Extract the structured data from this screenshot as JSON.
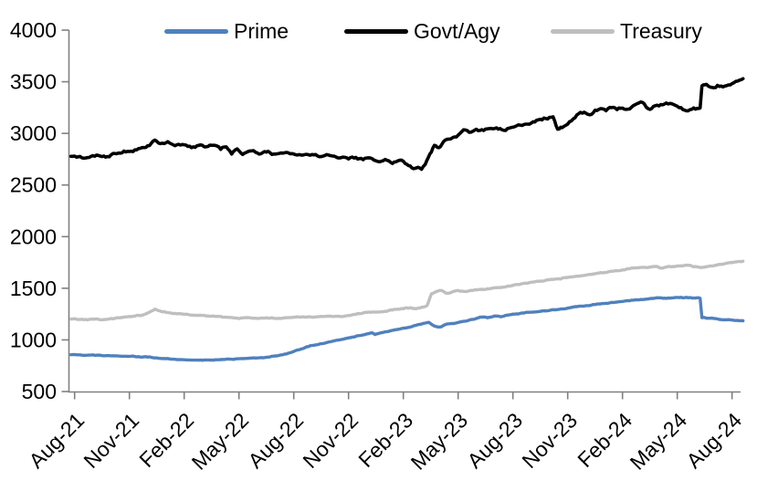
{
  "chart_data": {
    "type": "line",
    "title": "",
    "xlabel": "",
    "ylabel": "",
    "background": "#FFFFFF",
    "grid": false,
    "legend_position": "top",
    "axis_color": "#808080",
    "label_color": "#000000",
    "y_axis": {
      "ticks": [
        500,
        1000,
        1500,
        2000,
        2500,
        3000,
        3500,
        4000
      ],
      "range": [
        500,
        4000
      ]
    },
    "x_axis": {
      "tick_labels": [
        "Aug-21",
        "Nov-21",
        "Feb-22",
        "May-22",
        "Aug-22",
        "Nov-22",
        "Feb-23",
        "May-23",
        "Aug-23",
        "Nov-23",
        "Feb-24",
        "May-24",
        "Aug-24"
      ],
      "tick_months": [
        0,
        3,
        6,
        9,
        12,
        15,
        18,
        21,
        24,
        27,
        30,
        33,
        36
      ],
      "range_months": [
        -0.2,
        36.6
      ]
    },
    "series": [
      {
        "name": "Prime",
        "color": "#4F81BD",
        "stroke_width": 3.4,
        "noise_amplitude": 5,
        "points": [
          [
            -0.2,
            856
          ],
          [
            0,
            858
          ],
          [
            0.5,
            851
          ],
          [
            1,
            855
          ],
          [
            1.5,
            847
          ],
          [
            2,
            846
          ],
          [
            2.5,
            843
          ],
          [
            3,
            841
          ],
          [
            3.5,
            838
          ],
          [
            4,
            833
          ],
          [
            4.5,
            826
          ],
          [
            5,
            818
          ],
          [
            5.5,
            812
          ],
          [
            6,
            808
          ],
          [
            6.5,
            804
          ],
          [
            7,
            802
          ],
          [
            7.5,
            805
          ],
          [
            8,
            809
          ],
          [
            8.5,
            813
          ],
          [
            9,
            817
          ],
          [
            9.5,
            821
          ],
          [
            10,
            825
          ],
          [
            10.5,
            831
          ],
          [
            11,
            845
          ],
          [
            11.5,
            862
          ],
          [
            12,
            888
          ],
          [
            12.4,
            912
          ],
          [
            12.8,
            935
          ],
          [
            13.2,
            952
          ],
          [
            13.6,
            965
          ],
          [
            14,
            982
          ],
          [
            14.4,
            998
          ],
          [
            14.8,
            1012
          ],
          [
            15.2,
            1028
          ],
          [
            15.6,
            1042
          ],
          [
            16,
            1058
          ],
          [
            16.3,
            1068
          ],
          [
            16.45,
            1052
          ],
          [
            16.7,
            1066
          ],
          [
            17,
            1078
          ],
          [
            17.4,
            1092
          ],
          [
            17.8,
            1105
          ],
          [
            18.2,
            1118
          ],
          [
            18.7,
            1142
          ],
          [
            19.1,
            1160
          ],
          [
            19.4,
            1170
          ],
          [
            19.7,
            1135
          ],
          [
            20,
            1125
          ],
          [
            20.3,
            1148
          ],
          [
            20.6,
            1158
          ],
          [
            21,
            1168
          ],
          [
            21.5,
            1185
          ],
          [
            22,
            1208
          ],
          [
            22.3,
            1220
          ],
          [
            22.6,
            1214
          ],
          [
            23,
            1232
          ],
          [
            23.4,
            1226
          ],
          [
            23.8,
            1242
          ],
          [
            24.2,
            1252
          ],
          [
            24.6,
            1260
          ],
          [
            25,
            1268
          ],
          [
            25.5,
            1276
          ],
          [
            26,
            1285
          ],
          [
            26.5,
            1295
          ],
          [
            27,
            1308
          ],
          [
            27.5,
            1322
          ],
          [
            28,
            1332
          ],
          [
            28.5,
            1342
          ],
          [
            29,
            1352
          ],
          [
            29.5,
            1362
          ],
          [
            30,
            1372
          ],
          [
            30.5,
            1385
          ],
          [
            31,
            1392
          ],
          [
            31.5,
            1400
          ],
          [
            32,
            1408
          ],
          [
            32.4,
            1402
          ],
          [
            32.8,
            1408
          ],
          [
            33.2,
            1412
          ],
          [
            33.6,
            1408
          ],
          [
            34,
            1406
          ],
          [
            34.25,
            1404
          ],
          [
            34.35,
            1215
          ],
          [
            34.7,
            1210
          ],
          [
            35,
            1207
          ],
          [
            35.3,
            1198
          ],
          [
            35.6,
            1196
          ],
          [
            36,
            1192
          ],
          [
            36.6,
            1185
          ]
        ]
      },
      {
        "name": "Govt/Agy",
        "color": "#000000",
        "stroke_width": 3.6,
        "noise_amplitude": 16,
        "points": [
          [
            -0.2,
            2778
          ],
          [
            0,
            2780
          ],
          [
            0.7,
            2765
          ],
          [
            1.2,
            2790
          ],
          [
            1.7,
            2770
          ],
          [
            2.2,
            2805
          ],
          [
            2.8,
            2820
          ],
          [
            3.4,
            2840
          ],
          [
            4,
            2880
          ],
          [
            4.4,
            2935
          ],
          [
            4.8,
            2905
          ],
          [
            5.1,
            2920
          ],
          [
            5.5,
            2880
          ],
          [
            6,
            2890
          ],
          [
            6.4,
            2862
          ],
          [
            6.8,
            2885
          ],
          [
            7.2,
            2870
          ],
          [
            7.6,
            2885
          ],
          [
            8,
            2845
          ],
          [
            8.3,
            2870
          ],
          [
            8.6,
            2800
          ],
          [
            8.9,
            2850
          ],
          [
            9.2,
            2795
          ],
          [
            9.6,
            2830
          ],
          [
            10,
            2810
          ],
          [
            10.5,
            2818
          ],
          [
            11,
            2800
          ],
          [
            11.5,
            2812
          ],
          [
            12,
            2800
          ],
          [
            12.4,
            2790
          ],
          [
            13,
            2795
          ],
          [
            13.5,
            2775
          ],
          [
            14,
            2785
          ],
          [
            14.5,
            2762
          ],
          [
            15,
            2752
          ],
          [
            15.4,
            2768
          ],
          [
            15.8,
            2745
          ],
          [
            16.2,
            2762
          ],
          [
            16.6,
            2728
          ],
          [
            17,
            2748
          ],
          [
            17.4,
            2708
          ],
          [
            17.8,
            2740
          ],
          [
            18.2,
            2700
          ],
          [
            18.55,
            2658
          ],
          [
            18.8,
            2672
          ],
          [
            19,
            2652
          ],
          [
            19.2,
            2700
          ],
          [
            19.45,
            2800
          ],
          [
            19.7,
            2885
          ],
          [
            19.95,
            2862
          ],
          [
            20.2,
            2920
          ],
          [
            20.5,
            2945
          ],
          [
            20.9,
            2965
          ],
          [
            21.3,
            3035
          ],
          [
            21.7,
            3012
          ],
          [
            22,
            3040
          ],
          [
            22.4,
            3028
          ],
          [
            22.8,
            3048
          ],
          [
            23.2,
            3040
          ],
          [
            23.6,
            3028
          ],
          [
            24,
            3060
          ],
          [
            24.4,
            3080
          ],
          [
            24.8,
            3090
          ],
          [
            25.2,
            3110
          ],
          [
            25.6,
            3130
          ],
          [
            26,
            3155
          ],
          [
            26.2,
            3160
          ],
          [
            26.45,
            3040
          ],
          [
            26.7,
            3055
          ],
          [
            27,
            3090
          ],
          [
            27.3,
            3140
          ],
          [
            27.6,
            3190
          ],
          [
            27.9,
            3205
          ],
          [
            28.2,
            3180
          ],
          [
            28.5,
            3225
          ],
          [
            28.8,
            3240
          ],
          [
            29.1,
            3220
          ],
          [
            29.4,
            3250
          ],
          [
            29.7,
            3230
          ],
          [
            30,
            3245
          ],
          [
            30.3,
            3235
          ],
          [
            30.6,
            3270
          ],
          [
            30.9,
            3295
          ],
          [
            31.1,
            3300
          ],
          [
            31.4,
            3240
          ],
          [
            31.7,
            3262
          ],
          [
            32.1,
            3280
          ],
          [
            32.5,
            3285
          ],
          [
            32.8,
            3280
          ],
          [
            33.1,
            3250
          ],
          [
            33.4,
            3225
          ],
          [
            33.7,
            3230
          ],
          [
            34,
            3235
          ],
          [
            34.25,
            3245
          ],
          [
            34.35,
            3460
          ],
          [
            34.6,
            3475
          ],
          [
            34.9,
            3445
          ],
          [
            35.2,
            3465
          ],
          [
            35.5,
            3450
          ],
          [
            35.8,
            3470
          ],
          [
            36.1,
            3490
          ],
          [
            36.4,
            3515
          ],
          [
            36.6,
            3530
          ]
        ]
      },
      {
        "name": "Treasury",
        "color": "#BFBFBF",
        "stroke_width": 3.4,
        "noise_amplitude": 6,
        "points": [
          [
            -0.2,
            1202
          ],
          [
            0,
            1205
          ],
          [
            0.5,
            1196
          ],
          [
            1,
            1202
          ],
          [
            1.5,
            1195
          ],
          [
            2,
            1208
          ],
          [
            2.6,
            1218
          ],
          [
            3.2,
            1228
          ],
          [
            3.8,
            1245
          ],
          [
            4.4,
            1298
          ],
          [
            4.8,
            1272
          ],
          [
            5.2,
            1262
          ],
          [
            5.6,
            1252
          ],
          [
            6,
            1248
          ],
          [
            6.6,
            1238
          ],
          [
            7.2,
            1232
          ],
          [
            7.8,
            1228
          ],
          [
            8.4,
            1218
          ],
          [
            9,
            1206
          ],
          [
            9.5,
            1215
          ],
          [
            10,
            1208
          ],
          [
            10.5,
            1214
          ],
          [
            11,
            1208
          ],
          [
            11.5,
            1214
          ],
          [
            12,
            1220
          ],
          [
            12.5,
            1224
          ],
          [
            13,
            1220
          ],
          [
            13.5,
            1227
          ],
          [
            14,
            1231
          ],
          [
            14.5,
            1228
          ],
          [
            15,
            1236
          ],
          [
            15.5,
            1256
          ],
          [
            16,
            1266
          ],
          [
            16.5,
            1270
          ],
          [
            17,
            1277
          ],
          [
            17.5,
            1296
          ],
          [
            18,
            1302
          ],
          [
            18.4,
            1312
          ],
          [
            18.7,
            1302
          ],
          [
            19,
            1316
          ],
          [
            19.3,
            1332
          ],
          [
            19.55,
            1448
          ],
          [
            19.8,
            1468
          ],
          [
            20.1,
            1478
          ],
          [
            20.4,
            1452
          ],
          [
            20.7,
            1468
          ],
          [
            21,
            1478
          ],
          [
            21.4,
            1468
          ],
          [
            21.8,
            1478
          ],
          [
            22.2,
            1488
          ],
          [
            22.6,
            1495
          ],
          [
            23,
            1505
          ],
          [
            23.5,
            1512
          ],
          [
            24,
            1528
          ],
          [
            24.5,
            1545
          ],
          [
            25,
            1558
          ],
          [
            25.5,
            1568
          ],
          [
            26,
            1582
          ],
          [
            26.5,
            1592
          ],
          [
            27,
            1605
          ],
          [
            27.5,
            1618
          ],
          [
            28,
            1628
          ],
          [
            28.5,
            1640
          ],
          [
            29,
            1652
          ],
          [
            29.5,
            1665
          ],
          [
            30,
            1678
          ],
          [
            30.4,
            1690
          ],
          [
            30.8,
            1698
          ],
          [
            31.2,
            1703
          ],
          [
            31.6,
            1708
          ],
          [
            31.9,
            1712
          ],
          [
            32.1,
            1695
          ],
          [
            32.4,
            1705
          ],
          [
            32.8,
            1712
          ],
          [
            33.2,
            1718
          ],
          [
            33.6,
            1722
          ],
          [
            34,
            1710
          ],
          [
            34.3,
            1700
          ],
          [
            34.7,
            1712
          ],
          [
            35.1,
            1722
          ],
          [
            35.5,
            1735
          ],
          [
            36,
            1748
          ],
          [
            36.6,
            1762
          ]
        ]
      }
    ]
  }
}
